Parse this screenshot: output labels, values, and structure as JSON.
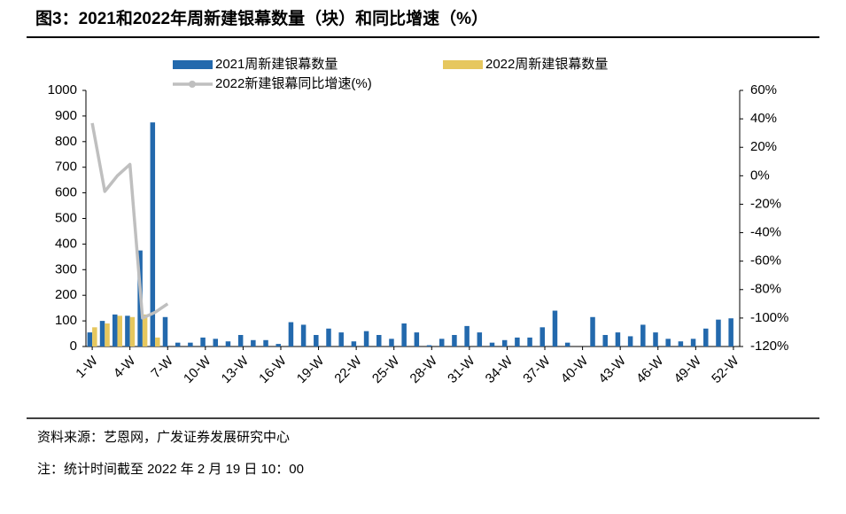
{
  "chart_data": {
    "type": "bar_line",
    "title": "图3：2021和2022年周新建银幕数量（块）和同比增速（%）",
    "source": "资料来源：艺恩网，广发证券发展研究中心",
    "note": "注：统计时间截至 2022 年 2 月 19 日 10：00",
    "categories": [
      "1-W",
      null,
      null,
      "4-W",
      null,
      null,
      "7-W",
      null,
      null,
      "10-W",
      null,
      null,
      "13-W",
      null,
      null,
      "16-W",
      null,
      null,
      "19-W",
      null,
      null,
      "22-W",
      null,
      null,
      "25-W",
      null,
      null,
      "28-W",
      null,
      null,
      "31-W",
      null,
      null,
      "34-W",
      null,
      null,
      "37-W",
      null,
      null,
      "40-W",
      null,
      null,
      "43-W",
      null,
      null,
      "46-W",
      null,
      null,
      "49-W",
      null,
      null,
      "52-W"
    ],
    "series": [
      {
        "name": "2021周新建银幕数量",
        "type": "bar",
        "color": "#2369ad",
        "values": [
          55,
          100,
          125,
          120,
          375,
          875,
          115,
          15,
          15,
          35,
          30,
          20,
          45,
          25,
          25,
          10,
          95,
          85,
          45,
          70,
          55,
          20,
          60,
          45,
          30,
          90,
          55,
          5,
          30,
          45,
          80,
          55,
          15,
          25,
          35,
          35,
          75,
          140,
          15,
          0,
          115,
          45,
          55,
          40,
          85,
          55,
          30,
          20,
          30,
          70,
          105,
          110
        ]
      },
      {
        "name": "2022周新建银幕数量",
        "type": "bar",
        "color": "#e6c75e",
        "values": [
          75,
          90,
          120,
          115,
          125,
          35,
          null,
          null,
          null,
          null,
          null,
          null,
          null,
          null,
          null,
          null,
          null,
          null,
          null,
          null,
          null,
          null,
          null,
          null,
          null,
          null,
          null,
          null,
          null,
          null,
          null,
          null,
          null,
          null,
          null,
          null,
          null,
          null,
          null,
          null,
          null,
          null,
          null,
          null,
          null,
          null,
          null,
          null,
          null,
          null,
          null,
          null
        ]
      },
      {
        "name": "2022新建银幕同比增速(%)",
        "type": "line",
        "axis": "y2",
        "color": "#bfbfbf",
        "values": [
          37,
          -11,
          0,
          8,
          -100,
          -96,
          -90,
          null,
          null,
          null,
          null,
          null,
          null,
          null,
          null,
          null,
          null,
          null,
          null,
          null,
          null,
          null,
          null,
          null,
          null,
          null,
          null,
          null,
          null,
          null,
          null,
          null,
          null,
          null,
          null,
          null,
          null,
          null,
          null,
          null,
          null,
          null,
          null,
          null,
          null,
          null,
          null,
          null,
          null,
          null,
          null,
          null
        ]
      }
    ],
    "ylim": [
      0,
      1000
    ],
    "yticks": [
      0,
      100,
      200,
      300,
      400,
      500,
      600,
      700,
      800,
      900,
      1000
    ],
    "y2lim": [
      -120,
      60
    ],
    "y2ticks": [
      {
        "value": -120,
        "label": "-120%"
      },
      {
        "value": -100,
        "label": "-100%"
      },
      {
        "value": -80,
        "label": "-80%"
      },
      {
        "value": -60,
        "label": "-60%"
      },
      {
        "value": -40,
        "label": "-40%"
      },
      {
        "value": -20,
        "label": "-20%"
      },
      {
        "value": 0,
        "label": "0%"
      },
      {
        "value": 20,
        "label": "20%"
      },
      {
        "value": 40,
        "label": "40%"
      },
      {
        "value": 60,
        "label": "60%"
      }
    ],
    "legend": "top"
  }
}
